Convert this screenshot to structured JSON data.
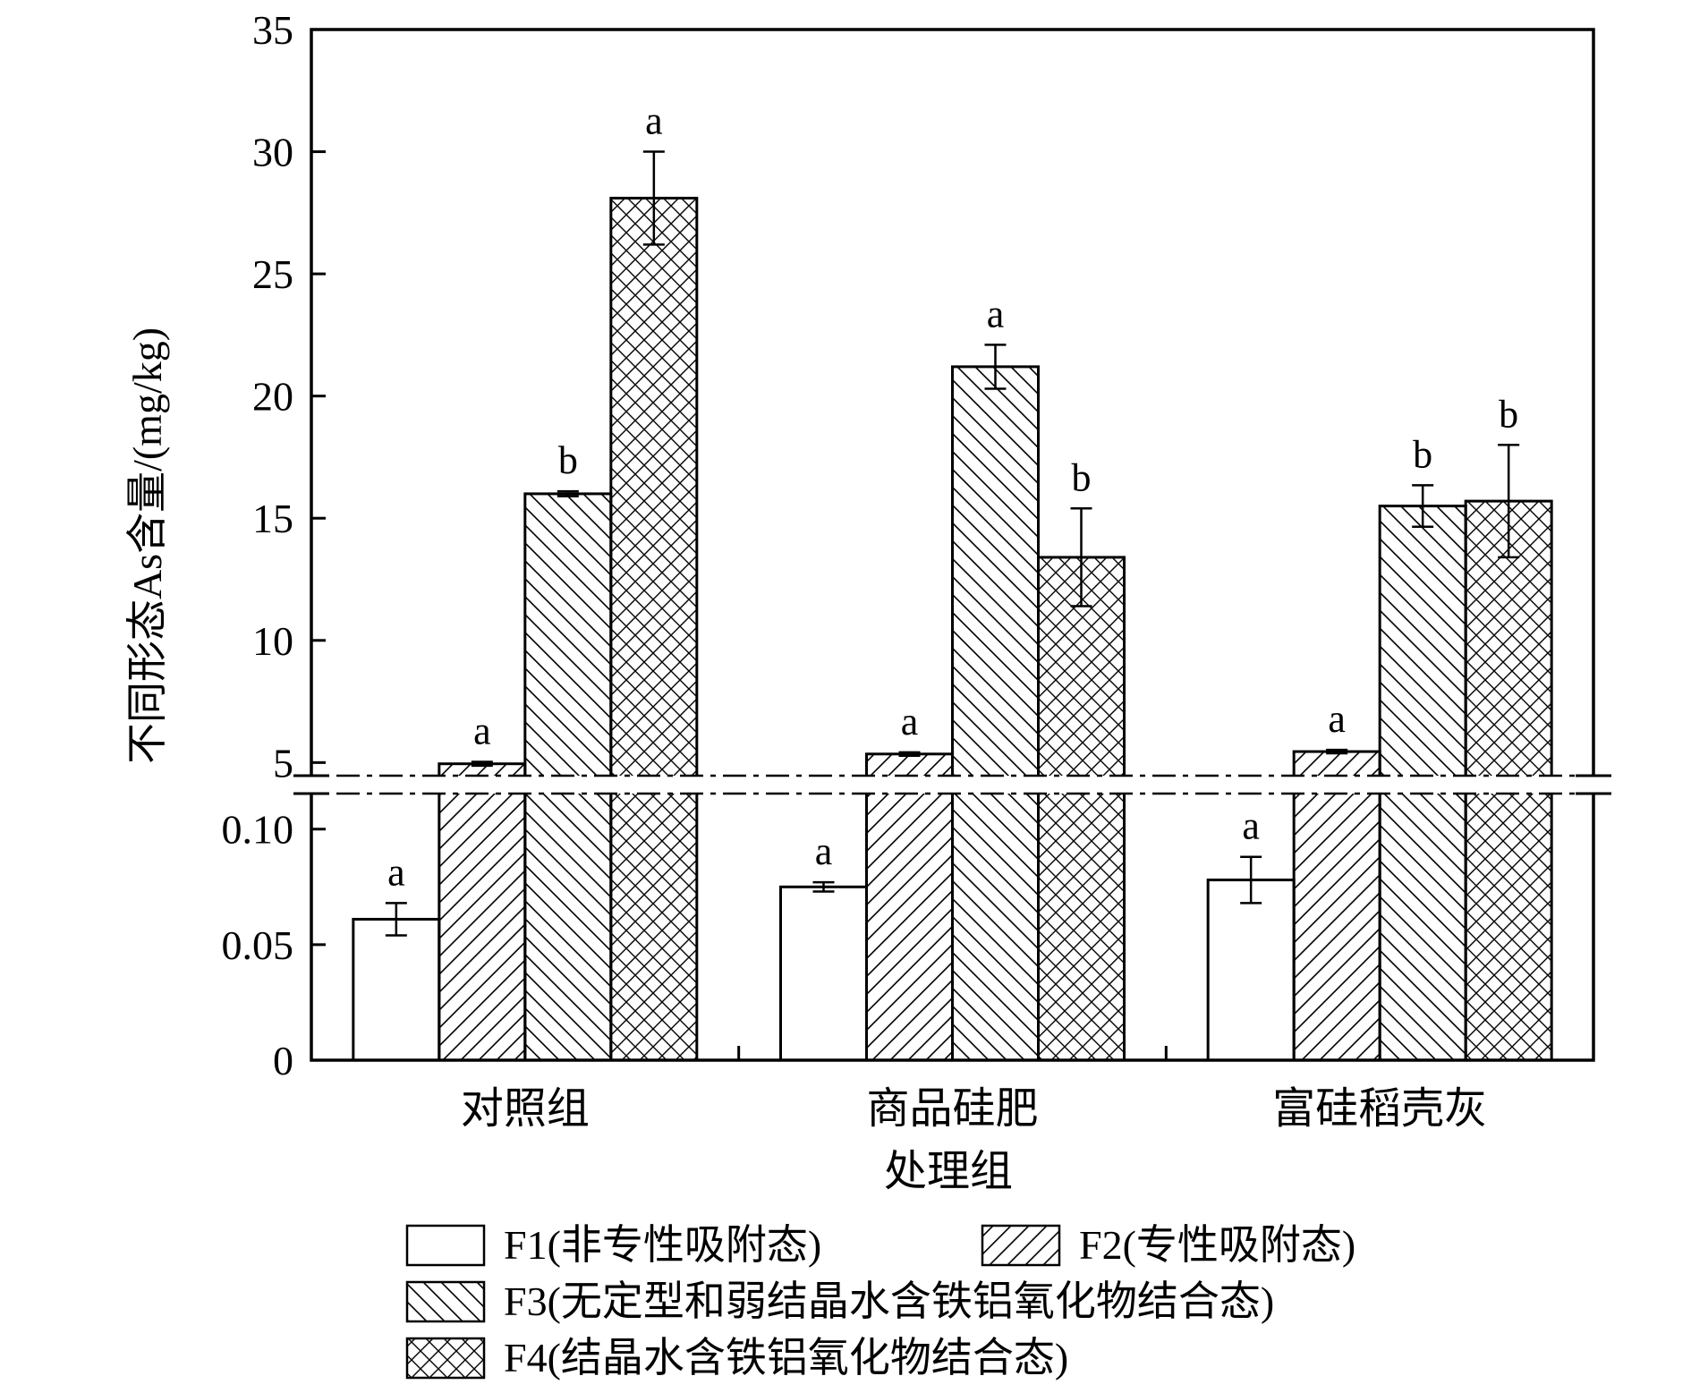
{
  "chart_data": {
    "type": "bar",
    "ylabel": "不同形态As含量/(mg/kg)",
    "xlabel": "处理组",
    "categories": [
      "对照组",
      "商品硅肥",
      "富硅稻壳灰"
    ],
    "axis_break": {
      "lower_range": [
        0,
        0.115
      ],
      "upper_range": [
        4.5,
        35
      ]
    },
    "y_ticks": [
      {
        "value": 0,
        "label": "0"
      },
      {
        "value": 0.05,
        "label": "0.05"
      },
      {
        "value": 0.1,
        "label": "0.10"
      },
      {
        "value": 5,
        "label": "5"
      },
      {
        "value": 10,
        "label": "10"
      },
      {
        "value": 15,
        "label": "15"
      },
      {
        "value": 20,
        "label": "20"
      },
      {
        "value": 25,
        "label": "25"
      },
      {
        "value": 30,
        "label": "30"
      },
      {
        "value": 35,
        "label": "35"
      }
    ],
    "series": [
      {
        "name": "F1(非专性吸附态)",
        "pattern": "none",
        "values": [
          0.061,
          0.075,
          0.078
        ],
        "errors": [
          0.007,
          0.002,
          0.01
        ],
        "letters": [
          "a",
          "a",
          "a"
        ]
      },
      {
        "name": "F2(专性吸附态)",
        "pattern": "diag-right",
        "values": [
          4.95,
          5.35,
          5.45
        ],
        "errors": [
          0.08,
          0.07,
          0.07
        ],
        "letters": [
          "a",
          "a",
          "a"
        ]
      },
      {
        "name": "F3(无定型和弱结晶水含铁铝氧化物结合态)",
        "pattern": "diag-left",
        "values": [
          16.0,
          21.2,
          15.5
        ],
        "errors": [
          0.1,
          0.9,
          0.85
        ],
        "letters": [
          "b",
          "a",
          "b"
        ]
      },
      {
        "name": "F4(结晶水含铁铝氧化物结合态)",
        "pattern": "cross",
        "values": [
          28.1,
          13.4,
          15.7
        ],
        "errors": [
          1.9,
          2.0,
          2.3
        ],
        "letters": [
          "a",
          "b",
          "b"
        ]
      }
    ],
    "legend_position": "bottom",
    "grid": false
  }
}
